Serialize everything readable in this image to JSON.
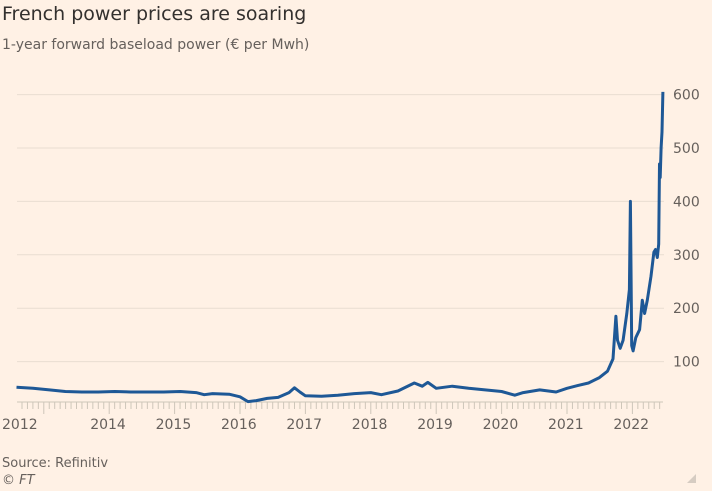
{
  "colors": {
    "background": "#FFF1E5",
    "line": "#1E5896",
    "grid": "#E9DDD1",
    "text": "#66605C"
  },
  "chart_data": {
    "type": "line",
    "title": "French power prices are soaring",
    "subtitle": "1-year forward baseload power (€ per Mwh)",
    "source": "Source: Refinitiv",
    "credit": "© FT",
    "grid": true,
    "y_axis_side": "right",
    "ylim": [
      0,
      620
    ],
    "yticks": [
      100,
      200,
      300,
      400,
      500,
      600
    ],
    "xtick_labels": [
      "2012",
      "2014",
      "2015",
      "2016",
      "2017",
      "2018",
      "2019",
      "2020",
      "2021",
      "2022"
    ],
    "series": [
      {
        "points": [
          [
            "2012-08-01",
            52
          ],
          [
            "2012-11-01",
            50
          ],
          [
            "2013-02-01",
            47
          ],
          [
            "2013-05-01",
            44
          ],
          [
            "2013-08-01",
            43
          ],
          [
            "2013-11-01",
            43
          ],
          [
            "2014-02-01",
            44
          ],
          [
            "2014-05-01",
            43
          ],
          [
            "2014-08-01",
            43
          ],
          [
            "2014-11-01",
            43
          ],
          [
            "2015-02-01",
            44
          ],
          [
            "2015-05-01",
            42
          ],
          [
            "2015-06-15",
            38
          ],
          [
            "2015-08-01",
            40
          ],
          [
            "2015-11-01",
            39
          ],
          [
            "2016-01-01",
            34
          ],
          [
            "2016-02-15",
            25
          ],
          [
            "2016-04-01",
            27
          ],
          [
            "2016-06-01",
            31
          ],
          [
            "2016-08-01",
            33
          ],
          [
            "2016-10-01",
            42
          ],
          [
            "2016-11-01",
            51
          ],
          [
            "2016-12-01",
            43
          ],
          [
            "2017-01-01",
            36
          ],
          [
            "2017-04-01",
            35
          ],
          [
            "2017-07-01",
            37
          ],
          [
            "2017-10-01",
            40
          ],
          [
            "2018-01-01",
            42
          ],
          [
            "2018-03-01",
            38
          ],
          [
            "2018-06-01",
            45
          ],
          [
            "2018-09-01",
            60
          ],
          [
            "2018-10-15",
            54
          ],
          [
            "2018-11-15",
            61
          ],
          [
            "2019-01-01",
            50
          ],
          [
            "2019-04-01",
            54
          ],
          [
            "2019-07-01",
            50
          ],
          [
            "2019-10-01",
            47
          ],
          [
            "2020-01-01",
            44
          ],
          [
            "2020-03-15",
            37
          ],
          [
            "2020-05-01",
            42
          ],
          [
            "2020-08-01",
            47
          ],
          [
            "2020-11-01",
            43
          ],
          [
            "2021-01-01",
            50
          ],
          [
            "2021-03-01",
            55
          ],
          [
            "2021-05-01",
            60
          ],
          [
            "2021-07-01",
            70
          ],
          [
            "2021-08-15",
            82
          ],
          [
            "2021-09-15",
            105
          ],
          [
            "2021-10-01",
            185
          ],
          [
            "2021-10-10",
            140
          ],
          [
            "2021-10-25",
            125
          ],
          [
            "2021-11-10",
            140
          ],
          [
            "2021-12-01",
            190
          ],
          [
            "2021-12-15",
            235
          ],
          [
            "2021-12-21",
            400
          ],
          [
            "2021-12-28",
            130
          ],
          [
            "2022-01-05",
            120
          ],
          [
            "2022-01-20",
            145
          ],
          [
            "2022-02-10",
            160
          ],
          [
            "2022-02-25",
            215
          ],
          [
            "2022-03-10",
            190
          ],
          [
            "2022-03-25",
            215
          ],
          [
            "2022-04-15",
            260
          ],
          [
            "2022-05-01",
            305
          ],
          [
            "2022-05-10",
            310
          ],
          [
            "2022-05-20",
            295
          ],
          [
            "2022-05-28",
            320
          ],
          [
            "2022-06-01",
            470
          ],
          [
            "2022-06-05",
            445
          ],
          [
            "2022-06-10",
            500
          ],
          [
            "2022-06-15",
            530
          ],
          [
            "2022-06-20",
            605
          ]
        ]
      }
    ]
  }
}
